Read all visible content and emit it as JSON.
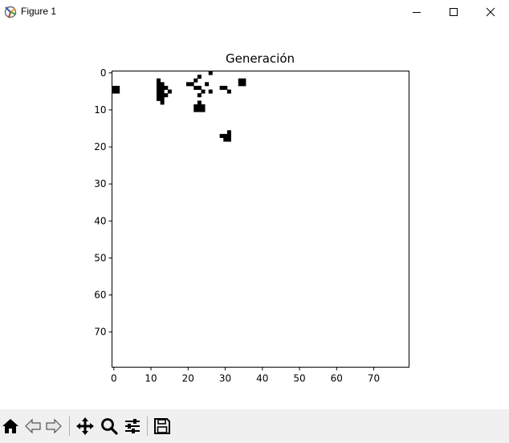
{
  "window": {
    "title": "Figure 1",
    "app_icon": "matplotlib-figure-icon",
    "controls": [
      "minimize-icon",
      "maximize-icon",
      "close-icon"
    ]
  },
  "toolbar": {
    "buttons": [
      "home-icon",
      "back-arrow-icon",
      "forward-arrow-icon",
      "pan-move-icon",
      "zoom-magnifier-icon",
      "configure-subplots-icon",
      "save-floppy-icon"
    ]
  },
  "chart_data": {
    "type": "heatmap",
    "title": "Generación",
    "xlabel": "",
    "ylabel": "",
    "colormap": "binary",
    "colors": {
      "alive": "#000000",
      "dead": "#ffffff"
    },
    "xlim": [
      -0.5,
      79.5
    ],
    "ylim": [
      79.5,
      -0.5
    ],
    "y_inverted": true,
    "xticks": [
      0,
      10,
      20,
      30,
      40,
      50,
      60,
      70
    ],
    "yticks": [
      0,
      10,
      20,
      30,
      40,
      50,
      60,
      70
    ],
    "grid": false,
    "alive_cells": [
      [
        0,
        4
      ],
      [
        1,
        4
      ],
      [
        0,
        5
      ],
      [
        1,
        5
      ],
      [
        12,
        2
      ],
      [
        12,
        3
      ],
      [
        13,
        3
      ],
      [
        12,
        4
      ],
      [
        13,
        4
      ],
      [
        14,
        4
      ],
      [
        12,
        5
      ],
      [
        13,
        5
      ],
      [
        15,
        5
      ],
      [
        12,
        6
      ],
      [
        13,
        6
      ],
      [
        14,
        6
      ],
      [
        12,
        7
      ],
      [
        13,
        7
      ],
      [
        13,
        8
      ],
      [
        20,
        3
      ],
      [
        21,
        3
      ],
      [
        22,
        2
      ],
      [
        23,
        1
      ],
      [
        22,
        4
      ],
      [
        23,
        4
      ],
      [
        24,
        5
      ],
      [
        23,
        6
      ],
      [
        25,
        3
      ],
      [
        26,
        0
      ],
      [
        26,
        5
      ],
      [
        23,
        8
      ],
      [
        22,
        9
      ],
      [
        23,
        9
      ],
      [
        24,
        9
      ],
      [
        24,
        10
      ],
      [
        22,
        10
      ],
      [
        23,
        10
      ],
      [
        29,
        4
      ],
      [
        30,
        4
      ],
      [
        31,
        5
      ],
      [
        34,
        2
      ],
      [
        35,
        2
      ],
      [
        34,
        3
      ],
      [
        35,
        3
      ],
      [
        29,
        17
      ],
      [
        30,
        17
      ],
      [
        30,
        18
      ],
      [
        31,
        18
      ],
      [
        31,
        17
      ],
      [
        31,
        16
      ]
    ]
  }
}
